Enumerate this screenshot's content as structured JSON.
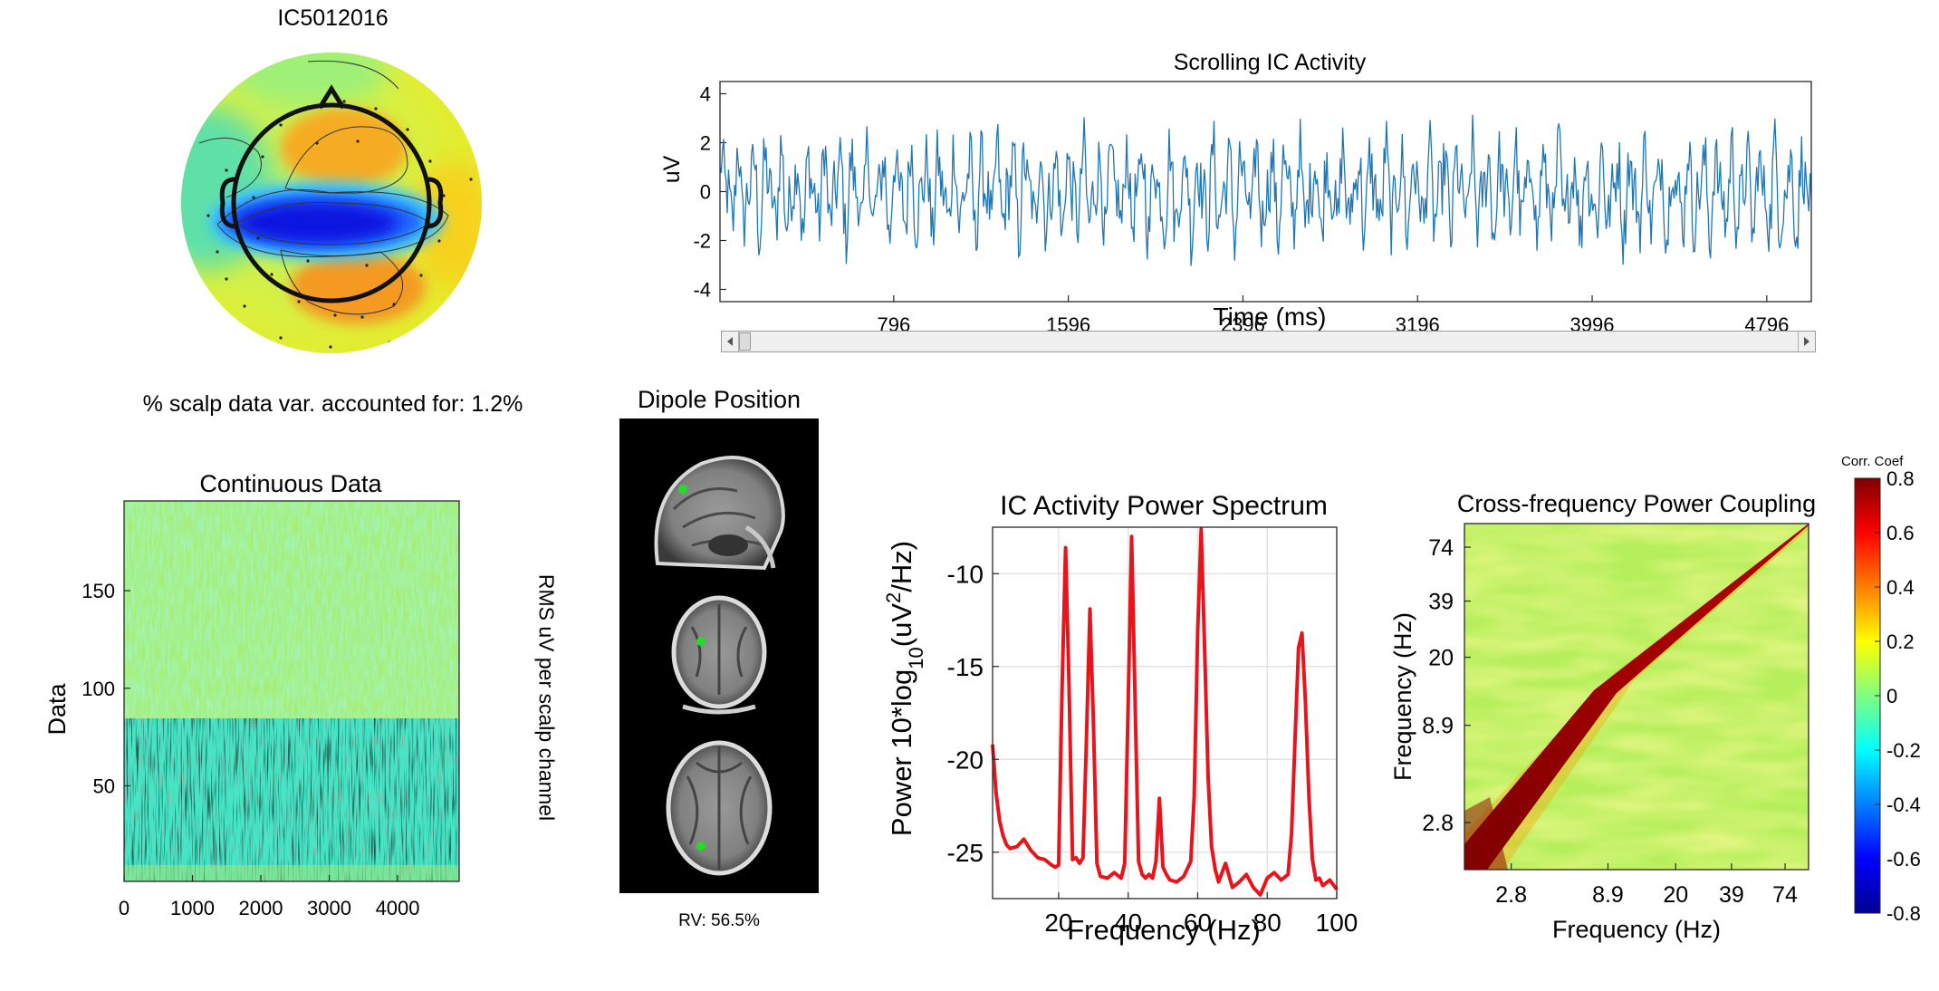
{
  "component_title": "IC5012016",
  "variance_text": "% scalp data var. accounted for: 1.2%",
  "rms_label": "RMS uV per scalp channel",
  "dipole": {
    "title": "Dipole Position",
    "rv_text": "RV: 56.5%"
  },
  "colors": {
    "trace": "#1f77b4",
    "spectrum": "#e8141b",
    "dipole_marker": "#22dd22",
    "axis": "#262626",
    "grid": "#dedede"
  },
  "chart_data": [
    {
      "id": "scrolling",
      "type": "line",
      "title": "Scrolling IC Activity",
      "xlabel": "Time (ms)",
      "ylabel": "uV",
      "xlim": [
        0,
        5000
      ],
      "ylim": [
        -4.5,
        4.5
      ],
      "xticks": [
        796,
        1596,
        2396,
        3196,
        3996,
        4796
      ],
      "yticks": [
        -4,
        -2,
        0,
        2,
        4
      ],
      "series": [
        {
          "approx_amplitude_uV": [
            -3.8,
            3.4
          ]
        }
      ]
    },
    {
      "id": "continuous",
      "type": "heatmap",
      "title": "Continuous Data",
      "xlabel": "",
      "ylabel": "Data",
      "xlim": [
        0,
        4900
      ],
      "ylim": [
        1,
        196
      ],
      "xticks": [
        0,
        1000,
        2000,
        3000,
        4000
      ],
      "yticks": [
        50,
        100,
        150
      ]
    },
    {
      "id": "spectrum",
      "type": "line",
      "title": "IC Activity Power Spectrum",
      "xlabel": "Frequency (Hz)",
      "ylabel_prefix": "Power 10*log",
      "ylabel_sub": "10",
      "ylabel_mid": "(uV",
      "ylabel_sup": "2",
      "ylabel_suffix": "/Hz)",
      "xlim": [
        1,
        100
      ],
      "ylim": [
        -27.5,
        -7.5
      ],
      "xticks": [
        20,
        40,
        60,
        80,
        100
      ],
      "yticks": [
        -10,
        -15,
        -20,
        -25
      ],
      "grid": true,
      "series": [
        {
          "x": [
            1,
            2,
            3,
            4,
            5,
            6,
            8,
            10,
            12,
            14,
            16,
            18,
            19,
            20,
            21,
            22,
            23,
            24,
            25,
            26,
            27,
            28,
            29,
            30,
            31,
            32,
            34,
            36,
            38,
            39,
            40,
            41,
            42,
            43,
            44,
            45,
            46,
            47,
            48,
            49,
            50,
            51,
            52,
            54,
            56,
            58,
            59,
            60,
            61,
            62,
            63,
            64,
            65,
            66,
            68,
            70,
            72,
            74,
            76,
            78,
            80,
            82,
            84,
            86,
            87,
            88,
            89,
            90,
            91,
            92,
            93,
            94,
            95,
            96,
            98,
            100
          ],
          "y": [
            -19.2,
            -21.8,
            -23.3,
            -24.1,
            -24.6,
            -24.8,
            -24.7,
            -24.3,
            -24.9,
            -25.3,
            -25.4,
            -25.7,
            -25.8,
            -25.7,
            -16,
            -8.6,
            -16,
            -25.4,
            -25.3,
            -25.6,
            -25.3,
            -19,
            -11.9,
            -18,
            -25.6,
            -26.3,
            -26.4,
            -26.1,
            -26.4,
            -25.6,
            -17,
            -8,
            -17,
            -25.5,
            -26.2,
            -26.4,
            -26.2,
            -26.4,
            -25.5,
            -22.1,
            -25.8,
            -26.2,
            -26.5,
            -26.6,
            -26.3,
            -25.5,
            -22,
            -13,
            -7.6,
            -14,
            -21,
            -24.7,
            -25.9,
            -26.6,
            -25.6,
            -26.9,
            -26.6,
            -26.2,
            -26.9,
            -27.3,
            -26.4,
            -26.1,
            -26.5,
            -26.2,
            -24,
            -19,
            -14,
            -13.2,
            -17,
            -22,
            -25.4,
            -26.5,
            -26.4,
            -26.8,
            -26.5,
            -27
          ]
        }
      ]
    },
    {
      "id": "coupling",
      "type": "heatmap",
      "title": "Cross-frequency Power Coupling",
      "xlabel": "Frequency (Hz)",
      "ylabel": "Frequency (Hz)",
      "xticks": [
        2.8,
        8.9,
        20,
        39,
        74
      ],
      "yticks": [
        2.8,
        8.9,
        20,
        39,
        74
      ],
      "colorbar": {
        "label": "Corr. Coef",
        "range": [
          -0.8,
          0.8
        ],
        "ticks": [
          0.8,
          0.6,
          0.4,
          0.2,
          0,
          -0.2,
          -0.4,
          -0.6,
          -0.8
        ]
      }
    }
  ]
}
